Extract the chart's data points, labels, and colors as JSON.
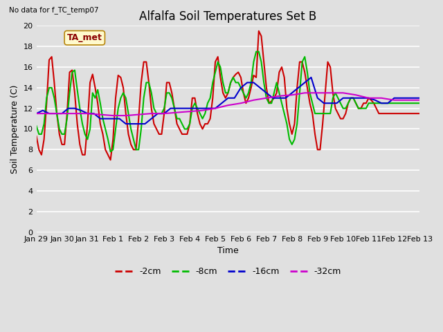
{
  "title": "Alfalfa Soil Temperatures Set B",
  "no_data_label": "No data for f_TC_temp07",
  "ta_met_label": "TA_met",
  "xlabel": "Time",
  "ylabel": "Soil Temperature (C)",
  "ylim": [
    0,
    20
  ],
  "yticks": [
    0,
    2,
    4,
    6,
    8,
    10,
    12,
    14,
    16,
    18,
    20
  ],
  "background_color": "#e0e0e0",
  "x_labels": [
    "Jan 29",
    "Jan 30",
    "Jan 31",
    "Feb 1",
    "Feb 2",
    "Feb 3",
    "Feb 4",
    "Feb 5",
    "Feb 6",
    "Feb 7",
    "Feb 8",
    "Feb 9",
    "Feb 10",
    "Feb 11",
    "Feb 12",
    "Feb 13"
  ],
  "x_tick_pos": [
    0,
    1,
    2,
    3,
    4,
    5,
    6,
    7,
    8,
    9,
    10,
    11,
    12,
    13,
    14,
    15
  ],
  "series_2cm_x": [
    0.0,
    0.1,
    0.2,
    0.3,
    0.4,
    0.5,
    0.6,
    0.7,
    0.8,
    0.9,
    1.0,
    1.1,
    1.2,
    1.3,
    1.4,
    1.5,
    1.6,
    1.7,
    1.8,
    1.9,
    2.0,
    2.1,
    2.2,
    2.3,
    2.4,
    2.5,
    2.6,
    2.7,
    2.8,
    2.9,
    3.0,
    3.1,
    3.2,
    3.3,
    3.4,
    3.5,
    3.6,
    3.7,
    3.8,
    3.9,
    4.0,
    4.1,
    4.2,
    4.3,
    4.4,
    4.5,
    4.6,
    4.7,
    4.8,
    4.9,
    5.0,
    5.1,
    5.2,
    5.3,
    5.4,
    5.5,
    5.6,
    5.7,
    5.8,
    5.9,
    6.0,
    6.1,
    6.2,
    6.3,
    6.4,
    6.5,
    6.6,
    6.7,
    6.8,
    6.9,
    7.0,
    7.1,
    7.2,
    7.3,
    7.4,
    7.5,
    7.6,
    7.7,
    7.8,
    7.9,
    8.0,
    8.1,
    8.2,
    8.3,
    8.4,
    8.5,
    8.6,
    8.7,
    8.8,
    8.9,
    9.0,
    9.1,
    9.2,
    9.3,
    9.4,
    9.5,
    9.6,
    9.7,
    9.8,
    9.9,
    10.0,
    10.1,
    10.2,
    10.3,
    10.4,
    10.5,
    10.6,
    10.7,
    10.8,
    10.9,
    11.0,
    11.1,
    11.2,
    11.3,
    11.4,
    11.5,
    11.6,
    11.7,
    11.8,
    11.9,
    12.0,
    12.1,
    12.2,
    12.3,
    12.4,
    12.5,
    12.6,
    12.7,
    12.8,
    12.9,
    13.0,
    13.1,
    13.2,
    13.3,
    13.4,
    13.5,
    13.6,
    13.7,
    13.8,
    13.9,
    14.0,
    14.1,
    14.2,
    14.3,
    14.4,
    14.5,
    14.6,
    14.7,
    14.8,
    14.9,
    15.0
  ],
  "series_2cm_y": [
    9.3,
    8.0,
    7.5,
    9.0,
    12.5,
    16.7,
    17.0,
    14.5,
    11.5,
    9.5,
    8.5,
    8.5,
    11.5,
    15.5,
    15.7,
    13.5,
    10.5,
    8.5,
    7.5,
    7.5,
    10.5,
    14.5,
    15.3,
    14.0,
    12.5,
    10.5,
    9.5,
    8.0,
    7.5,
    7.0,
    9.0,
    13.0,
    15.2,
    15.0,
    14.0,
    11.5,
    9.5,
    8.5,
    8.0,
    8.0,
    11.0,
    14.5,
    16.5,
    16.5,
    14.5,
    12.0,
    10.5,
    10.0,
    9.5,
    9.5,
    11.5,
    14.5,
    14.5,
    13.5,
    12.0,
    10.5,
    10.0,
    9.5,
    9.5,
    9.5,
    10.5,
    13.0,
    13.0,
    11.5,
    10.5,
    10.0,
    10.5,
    10.5,
    11.0,
    13.0,
    16.5,
    17.0,
    15.0,
    13.5,
    13.0,
    13.5,
    14.5,
    15.0,
    15.3,
    15.5,
    15.0,
    13.5,
    12.5,
    13.0,
    14.0,
    15.2,
    15.0,
    19.5,
    19.0,
    16.5,
    14.0,
    12.5,
    12.7,
    13.0,
    13.5,
    15.5,
    16.0,
    15.0,
    12.0,
    10.5,
    9.5,
    10.5,
    14.0,
    16.5,
    16.5,
    15.5,
    14.0,
    12.5,
    11.5,
    9.5,
    8.0,
    8.0,
    10.5,
    13.5,
    16.5,
    16.0,
    13.5,
    12.0,
    11.5,
    11.0,
    11.0,
    11.5,
    12.5,
    13.0,
    13.0,
    12.5,
    12.0,
    12.0,
    12.5,
    12.5,
    13.0,
    12.8,
    12.5,
    12.0,
    11.5,
    11.5,
    11.5,
    11.5,
    11.5,
    11.5,
    11.5,
    11.5,
    11.5,
    11.5,
    11.5,
    11.5,
    11.5,
    11.5,
    11.5,
    11.5,
    11.5
  ],
  "series_8cm_x": [
    0.0,
    0.1,
    0.2,
    0.3,
    0.4,
    0.5,
    0.6,
    0.7,
    0.8,
    0.9,
    1.0,
    1.1,
    1.2,
    1.3,
    1.4,
    1.5,
    1.6,
    1.7,
    1.8,
    1.9,
    2.0,
    2.1,
    2.2,
    2.3,
    2.4,
    2.5,
    2.6,
    2.7,
    2.8,
    2.9,
    3.0,
    3.1,
    3.2,
    3.3,
    3.4,
    3.5,
    3.6,
    3.7,
    3.8,
    3.9,
    4.0,
    4.1,
    4.2,
    4.3,
    4.4,
    4.5,
    4.6,
    4.7,
    4.8,
    4.9,
    5.0,
    5.1,
    5.2,
    5.3,
    5.4,
    5.5,
    5.6,
    5.7,
    5.8,
    5.9,
    6.0,
    6.1,
    6.2,
    6.3,
    6.4,
    6.5,
    6.6,
    6.7,
    6.8,
    6.9,
    7.0,
    7.1,
    7.2,
    7.3,
    7.4,
    7.5,
    7.6,
    7.7,
    7.8,
    7.9,
    8.0,
    8.1,
    8.2,
    8.3,
    8.4,
    8.5,
    8.6,
    8.7,
    8.8,
    8.9,
    9.0,
    9.1,
    9.2,
    9.3,
    9.4,
    9.5,
    9.6,
    9.7,
    9.8,
    9.9,
    10.0,
    10.1,
    10.2,
    10.3,
    10.4,
    10.5,
    10.6,
    10.7,
    10.8,
    10.9,
    11.0,
    11.1,
    11.2,
    11.3,
    11.4,
    11.5,
    11.6,
    11.7,
    11.8,
    11.9,
    12.0,
    12.1,
    12.2,
    12.3,
    12.4,
    12.5,
    12.6,
    12.7,
    12.8,
    12.9,
    13.0,
    13.1,
    13.2,
    13.3,
    13.4,
    13.5,
    13.6,
    13.7,
    13.8,
    13.9,
    14.0,
    14.1,
    14.2,
    14.3,
    14.4,
    14.5,
    14.6,
    14.7,
    14.8,
    14.9,
    15.0
  ],
  "series_8cm_y": [
    10.3,
    9.5,
    9.5,
    10.5,
    13.0,
    14.0,
    14.0,
    13.0,
    11.5,
    10.0,
    9.5,
    9.5,
    11.0,
    13.5,
    15.5,
    15.7,
    13.8,
    12.0,
    10.5,
    9.5,
    9.0,
    10.0,
    13.5,
    13.0,
    13.8,
    12.5,
    11.0,
    10.0,
    9.0,
    7.8,
    8.0,
    10.0,
    12.0,
    13.0,
    13.5,
    13.0,
    11.5,
    10.0,
    9.0,
    8.0,
    8.0,
    10.0,
    13.0,
    14.5,
    14.5,
    13.5,
    12.0,
    11.5,
    11.5,
    11.5,
    12.0,
    13.5,
    13.5,
    13.0,
    12.0,
    11.0,
    11.0,
    10.5,
    10.0,
    10.0,
    10.5,
    12.0,
    12.5,
    12.0,
    11.5,
    11.0,
    11.5,
    12.5,
    13.0,
    14.5,
    15.5,
    16.5,
    16.0,
    14.5,
    13.5,
    13.5,
    14.5,
    15.0,
    14.5,
    14.5,
    14.0,
    13.5,
    13.0,
    13.5,
    14.5,
    16.5,
    17.5,
    17.5,
    16.5,
    14.5,
    13.0,
    12.5,
    12.5,
    13.5,
    14.5,
    13.5,
    12.5,
    11.5,
    10.5,
    9.0,
    8.5,
    9.0,
    10.5,
    13.5,
    16.5,
    17.0,
    15.5,
    13.5,
    12.5,
    11.5,
    11.5,
    11.5,
    11.5,
    11.5,
    11.5,
    11.5,
    13.0,
    13.5,
    13.0,
    12.5,
    12.0,
    12.0,
    12.5,
    13.0,
    13.0,
    12.5,
    12.0,
    12.0,
    12.0,
    12.0,
    12.5,
    12.5,
    12.5,
    12.5,
    12.5,
    12.5,
    12.5,
    12.5,
    12.5,
    12.5,
    12.5,
    12.5,
    12.5,
    12.5,
    12.5,
    12.5,
    12.5,
    12.5,
    12.5,
    12.5,
    12.5
  ],
  "series_16cm_x": [
    0.0,
    0.25,
    0.5,
    0.75,
    1.0,
    1.25,
    1.5,
    1.75,
    2.0,
    2.25,
    2.5,
    2.75,
    3.0,
    3.25,
    3.5,
    3.75,
    4.0,
    4.25,
    4.5,
    4.75,
    5.0,
    5.25,
    5.5,
    5.75,
    6.0,
    6.25,
    6.5,
    6.75,
    7.0,
    7.25,
    7.5,
    7.75,
    8.0,
    8.25,
    8.5,
    8.75,
    9.0,
    9.25,
    9.5,
    9.75,
    10.0,
    10.25,
    10.5,
    10.75,
    11.0,
    11.25,
    11.5,
    11.75,
    12.0,
    12.25,
    12.5,
    12.75,
    13.0,
    13.25,
    13.5,
    13.75,
    14.0,
    14.25,
    14.5,
    14.75,
    15.0
  ],
  "series_16cm_y": [
    11.5,
    11.8,
    11.5,
    11.5,
    11.5,
    12.0,
    12.0,
    11.8,
    11.5,
    11.5,
    11.0,
    11.0,
    11.0,
    11.0,
    10.5,
    10.5,
    10.5,
    10.5,
    11.0,
    11.5,
    11.5,
    12.0,
    12.0,
    12.0,
    12.0,
    12.0,
    12.0,
    12.0,
    12.0,
    12.5,
    13.0,
    13.0,
    14.0,
    14.5,
    14.5,
    14.0,
    13.5,
    13.0,
    13.0,
    13.0,
    13.5,
    14.0,
    14.5,
    15.0,
    13.0,
    12.5,
    12.5,
    12.5,
    13.0,
    13.0,
    13.0,
    13.0,
    13.0,
    12.8,
    12.5,
    12.5,
    13.0,
    13.0,
    13.0,
    13.0,
    13.0
  ],
  "series_32cm_x": [
    0.0,
    0.5,
    1.0,
    1.5,
    2.0,
    2.5,
    3.0,
    3.5,
    4.0,
    4.5,
    5.0,
    5.5,
    6.0,
    6.5,
    7.0,
    7.5,
    8.0,
    8.5,
    9.0,
    9.5,
    10.0,
    10.5,
    11.0,
    11.5,
    12.0,
    12.5,
    13.0,
    13.5,
    14.0,
    14.5,
    15.0
  ],
  "series_32cm_y": [
    11.5,
    11.5,
    11.5,
    11.5,
    11.5,
    11.4,
    11.3,
    11.3,
    11.4,
    11.5,
    11.5,
    11.6,
    11.7,
    11.8,
    12.0,
    12.3,
    12.5,
    12.8,
    13.0,
    13.2,
    13.3,
    13.5,
    13.5,
    13.5,
    13.5,
    13.3,
    13.0,
    13.0,
    12.8,
    12.8,
    12.8
  ],
  "color_2cm": "#cc0000",
  "color_8cm": "#00bb00",
  "color_16cm": "#0000cc",
  "color_32cm": "#cc00cc",
  "legend_labels": [
    "-2cm",
    "-8cm",
    "-16cm",
    "-32cm"
  ],
  "legend_colors": [
    "#cc0000",
    "#00bb00",
    "#0000cc",
    "#cc00cc"
  ]
}
